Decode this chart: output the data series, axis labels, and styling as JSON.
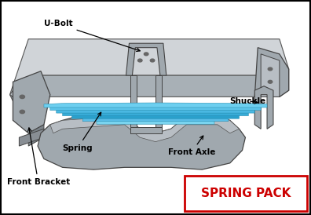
{
  "background_color": "#ffffff",
  "border_color": "#000000",
  "spring_pack_text": "SPRING PACK",
  "spring_pack_color": "#cc0000",
  "spring_pack_box_edge": "#cc0000",
  "label_ubolt": "U-Bolt",
  "label_spring": "Spring",
  "label_front_bracket": "Front Bracket",
  "label_shuckle": "Shuckle",
  "label_front_axle": "Front Axle",
  "frame_top_color": "#c8cdd0",
  "frame_side_color": "#a0a8ae",
  "frame_dark_color": "#888e94",
  "spring_blue_light": "#7ad4ef",
  "spring_blue_mid": "#4db8df",
  "spring_blue_dark": "#2090b8",
  "bracket_color": "#a0a8ae",
  "bracket_dark": "#7a8288",
  "axle_color": "#a0a8ae",
  "ubolt_color": "#a0a8ae"
}
